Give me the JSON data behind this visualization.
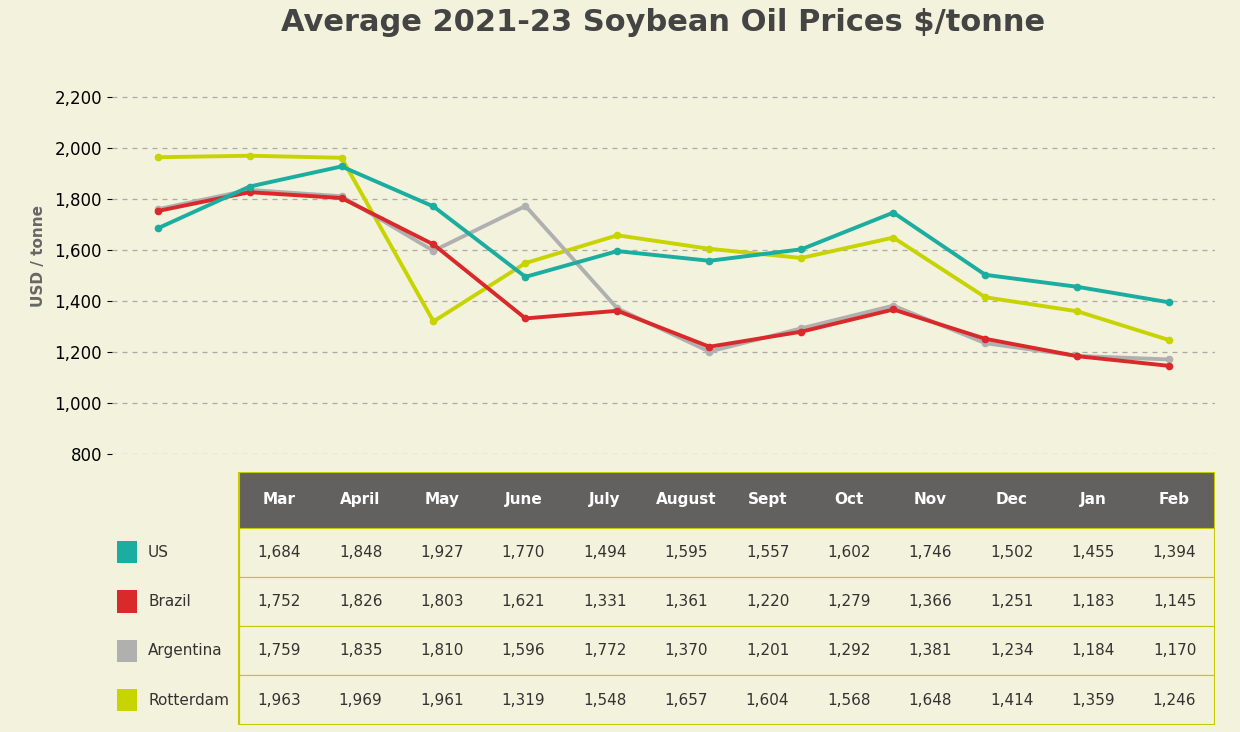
{
  "title": "Average 2021-23 Soybean Oil Prices $/tonne",
  "ylabel": "USD / tonne",
  "months": [
    "Mar",
    "April",
    "May",
    "June",
    "July",
    "August",
    "Sept",
    "Oct",
    "Nov",
    "Dec",
    "Jan",
    "Feb"
  ],
  "series": {
    "US": [
      1684,
      1848,
      1927,
      1770,
      1494,
      1595,
      1557,
      1602,
      1746,
      1502,
      1455,
      1394
    ],
    "Brazil": [
      1752,
      1826,
      1803,
      1621,
      1331,
      1361,
      1220,
      1279,
      1366,
      1251,
      1183,
      1145
    ],
    "Argentina": [
      1759,
      1835,
      1810,
      1596,
      1772,
      1370,
      1201,
      1292,
      1381,
      1234,
      1184,
      1170
    ],
    "Rotterdam": [
      1963,
      1969,
      1961,
      1319,
      1548,
      1657,
      1604,
      1568,
      1648,
      1414,
      1359,
      1246
    ]
  },
  "series_order": [
    "Rotterdam",
    "Argentina",
    "Brazil",
    "US"
  ],
  "series_names": [
    "US",
    "Brazil",
    "Argentina",
    "Rotterdam"
  ],
  "colors": {
    "US": "#1aada0",
    "Brazil": "#d9292a",
    "Argentina": "#b0b0b0",
    "Rotterdam": "#c8d400"
  },
  "ylim": [
    800,
    2350
  ],
  "yticks": [
    800,
    1000,
    1200,
    1400,
    1600,
    1800,
    2000,
    2200
  ],
  "background_color": "#f3f2dc",
  "table_header_bg": "#636060",
  "table_header_fg": "#ffffff",
  "table_row_fg": "#333333",
  "table_border_color": "#c8c800",
  "title_fontsize": 22,
  "axis_label_fontsize": 11,
  "tick_fontsize": 12,
  "table_header_fontsize": 11,
  "table_data_fontsize": 11
}
